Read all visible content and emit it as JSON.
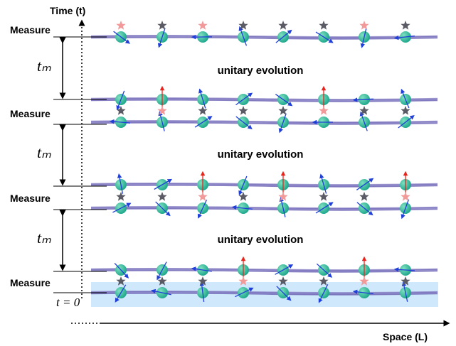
{
  "time_axis": {
    "label": "Time (t)"
  },
  "space_axis": {
    "label": "Space (L)"
  },
  "measure_labels": [
    "Measure",
    "Measure",
    "Measure",
    "Measure"
  ],
  "interval_labels": [
    "tₘ",
    "tₘ",
    "tₘ"
  ],
  "evolution_labels": [
    "unitary evolution",
    "unitary evolution",
    "unitary evolution"
  ],
  "origin_label": "t = 0"
}
